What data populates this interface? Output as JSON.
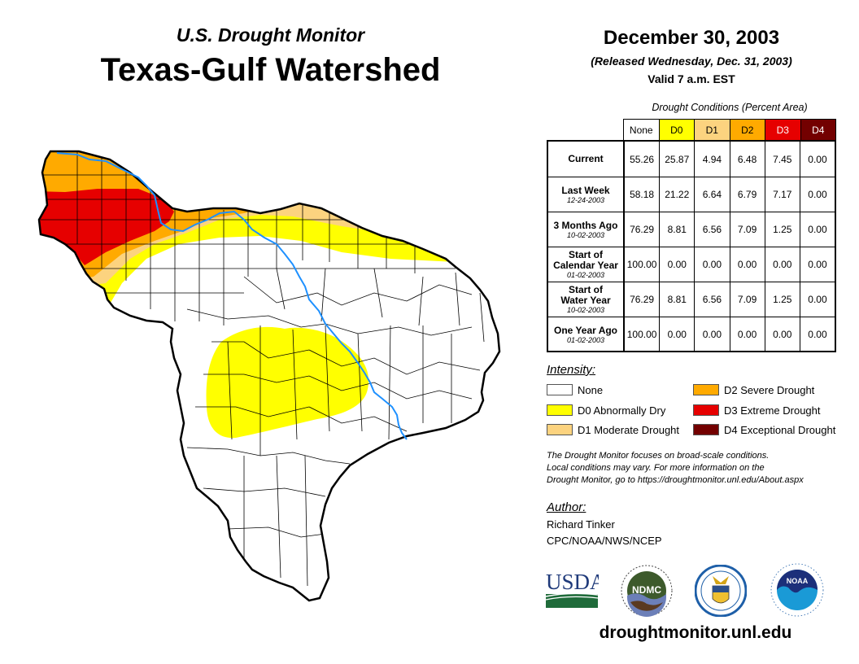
{
  "header": {
    "subtitle": "U.S. Drought Monitor",
    "title": "Texas-Gulf Watershed",
    "date": "December 30, 2003",
    "released": "(Released Wednesday, Dec. 31, 2003)",
    "valid": "Valid 7 a.m. EST"
  },
  "table": {
    "caption": "Drought Conditions (Percent Area)",
    "columns": [
      {
        "label": "None",
        "color": "#ffffff",
        "text_color": "#000000"
      },
      {
        "label": "D0",
        "color": "#ffff00",
        "text_color": "#000000"
      },
      {
        "label": "D1",
        "color": "#fcd37f",
        "text_color": "#000000"
      },
      {
        "label": "D2",
        "color": "#ffaa00",
        "text_color": "#000000"
      },
      {
        "label": "D3",
        "color": "#e60000",
        "text_color": "#ffffff"
      },
      {
        "label": "D4",
        "color": "#730000",
        "text_color": "#ffffff"
      }
    ],
    "rows": [
      {
        "label": "Current",
        "label2": "",
        "date": "",
        "values": [
          "55.26",
          "25.87",
          "4.94",
          "6.48",
          "7.45",
          "0.00"
        ]
      },
      {
        "label": "Last Week",
        "label2": "",
        "date": "12-24-2003",
        "values": [
          "58.18",
          "21.22",
          "6.64",
          "6.79",
          "7.17",
          "0.00"
        ]
      },
      {
        "label": "3 Months Ago",
        "label2": "",
        "date": "10-02-2003",
        "values": [
          "76.29",
          "8.81",
          "6.56",
          "7.09",
          "1.25",
          "0.00"
        ]
      },
      {
        "label": "Start of",
        "label2": "Calendar Year",
        "date": "01-02-2003",
        "values": [
          "100.00",
          "0.00",
          "0.00",
          "0.00",
          "0.00",
          "0.00"
        ]
      },
      {
        "label": "Start of",
        "label2": "Water Year",
        "date": "10-02-2003",
        "values": [
          "76.29",
          "8.81",
          "6.56",
          "7.09",
          "1.25",
          "0.00"
        ]
      },
      {
        "label": "One Year Ago",
        "label2": "",
        "date": "01-02-2003",
        "values": [
          "100.00",
          "0.00",
          "0.00",
          "0.00",
          "0.00",
          "0.00"
        ]
      }
    ]
  },
  "legend": {
    "title": "Intensity:",
    "items": [
      {
        "label": "None",
        "color": "#ffffff"
      },
      {
        "label": "D0 Abnormally Dry",
        "color": "#ffff00"
      },
      {
        "label": "D1 Moderate Drought",
        "color": "#fcd37f"
      },
      {
        "label": "D2 Severe Drought",
        "color": "#ffaa00"
      },
      {
        "label": "D3 Extreme Drought",
        "color": "#e60000"
      },
      {
        "label": "D4 Exceptional Drought",
        "color": "#730000"
      }
    ]
  },
  "note": {
    "line1": "The Drought Monitor focuses on broad-scale conditions.",
    "line2": "Local conditions may vary. For more information on the",
    "line3": "Drought Monitor, go to https://droughtmonitor.unl.edu/About.aspx"
  },
  "author": {
    "title": "Author:",
    "name": "Richard Tinker",
    "org": "CPC/NOAA/NWS/NCEP"
  },
  "logos": {
    "usda": "USDA",
    "ndmc": "NDMC",
    "noaa": "NOAA"
  },
  "footer": {
    "url": "droughtmonitor.unl.edu"
  },
  "map": {
    "river_color": "#1e90ff"
  }
}
